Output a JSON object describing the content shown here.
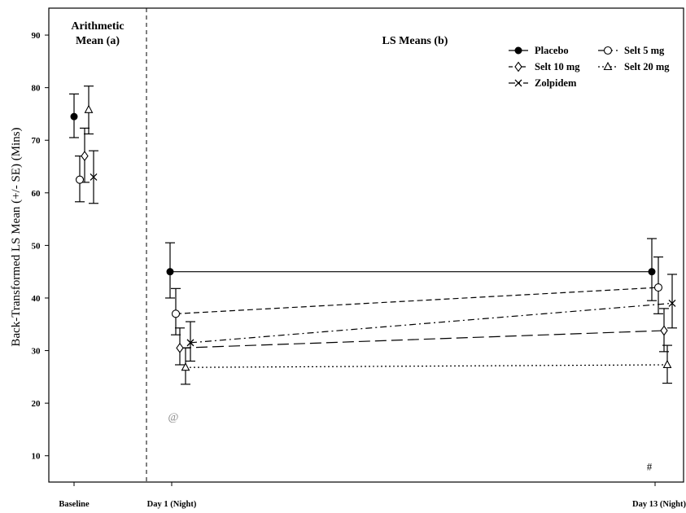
{
  "chart_data": {
    "type": "scatter",
    "ylabel": "Back-Transformed LS Mean (+/- SE) (Mins)",
    "xlabel": "",
    "ylim": [
      5,
      95
    ],
    "yticks": [
      10,
      20,
      30,
      40,
      50,
      60,
      70,
      80,
      90
    ],
    "ytick_labels": [
      "10",
      "20",
      "30",
      "40",
      "50",
      "60",
      "70",
      "80",
      "90"
    ],
    "categories": [
      "Baseline",
      "Day 1 (Night)",
      "Day 13 (Night)"
    ],
    "sections": [
      {
        "title_lines": [
          "Arithmetic",
          "Mean (a)"
        ]
      },
      {
        "title_lines": [
          "LS Means (b)"
        ]
      }
    ],
    "grid": false,
    "legend_position": "top-right",
    "series": [
      {
        "name": "Placebo",
        "marker": "filled-circle",
        "dash": "solid",
        "values": [
          74.5,
          45.0,
          45.0
        ],
        "err_low": [
          70.5,
          40.0,
          39.5
        ],
        "err_high": [
          78.8,
          50.5,
          51.3
        ]
      },
      {
        "name": "Selt 5 mg",
        "marker": "open-circle",
        "dash": "dashed",
        "values": [
          62.5,
          37.0,
          42.0
        ],
        "err_low": [
          58.3,
          33.0,
          37.0
        ],
        "err_high": [
          67.0,
          41.8,
          47.8
        ]
      },
      {
        "name": "Selt 10 mg",
        "marker": "open-diamond",
        "dash": "longdash",
        "values": [
          67.0,
          30.5,
          33.8
        ],
        "err_low": [
          62.0,
          27.3,
          29.8
        ],
        "err_high": [
          72.3,
          34.3,
          38.0
        ]
      },
      {
        "name": "Selt 20 mg",
        "marker": "open-triangle",
        "dash": "dotted",
        "values": [
          75.8,
          26.8,
          27.3
        ],
        "err_low": [
          71.2,
          23.6,
          23.8
        ],
        "err_high": [
          80.3,
          30.5,
          31.0
        ]
      },
      {
        "name": "Zolpidem",
        "marker": "x",
        "dash": "dashdot",
        "values": [
          63.0,
          31.5,
          39.0
        ],
        "err_low": [
          58.0,
          28.0,
          34.3
        ],
        "err_high": [
          68.0,
          35.5,
          44.5
        ]
      }
    ],
    "annotations": [
      {
        "text": "@",
        "category": "Day 1 (Night)",
        "series": "Selt 5 mg",
        "y": 17.5
      },
      {
        "text": "#",
        "category": "Day 13 (Night)",
        "series": "Placebo",
        "y": 8
      }
    ]
  }
}
